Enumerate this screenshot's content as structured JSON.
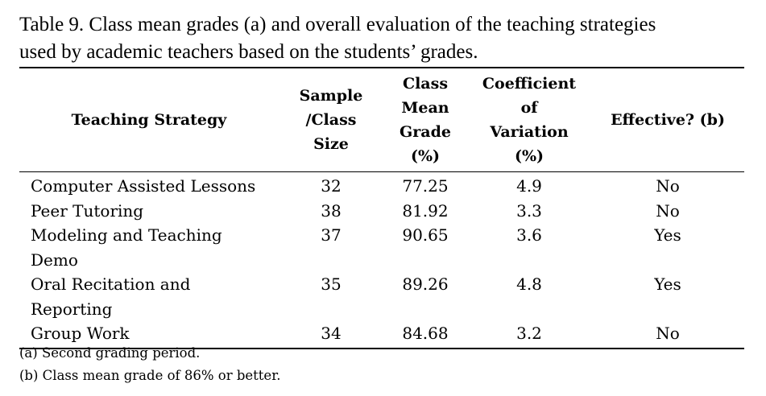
{
  "caption": {
    "line1": "Table 9. Class mean grades (a) and overall evaluation of the teaching strategies",
    "line2": "used by academic teachers based on the students’ grades."
  },
  "header": {
    "strategy": "Teaching Strategy",
    "sample": [
      "Sample",
      "/Class",
      "Size"
    ],
    "mean": [
      "Class",
      "Mean",
      "Grade",
      "(%)"
    ],
    "cv": [
      "Coefficient",
      "of",
      "Variation",
      "(%)"
    ],
    "effective": "Effective? (b)"
  },
  "rows": [
    {
      "strategy": "Computer Assisted Lessons",
      "strategy2": "",
      "sample": "32",
      "mean": "77.25",
      "cv": "4.9",
      "effective": "No"
    },
    {
      "strategy": "Peer Tutoring",
      "strategy2": "",
      "sample": "38",
      "mean": "81.92",
      "cv": "3.3",
      "effective": "No"
    },
    {
      "strategy": "Modeling and Teaching",
      "strategy2": "Demo",
      "sample": "37",
      "mean": "90.65",
      "cv": "3.6",
      "effective": "Yes"
    },
    {
      "strategy": "Oral Recitation and",
      "strategy2": "Reporting",
      "sample": "35",
      "mean": "89.26",
      "cv": "4.8",
      "effective": "Yes"
    },
    {
      "strategy": "Group Work",
      "strategy2": "",
      "sample": "34",
      "mean": "84.68",
      "cv": "3.2",
      "effective": "No"
    }
  ],
  "notes": [
    "(a) Second grading period.",
    "(b) Class mean grade of 86% or better."
  ]
}
